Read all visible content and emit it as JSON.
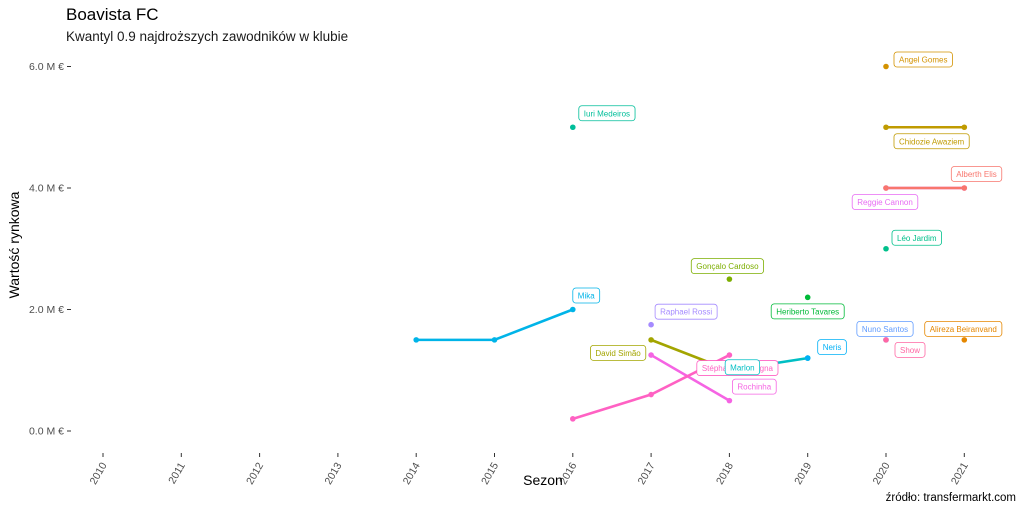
{
  "chart_data": {
    "type": "line",
    "title": "Boavista FC",
    "subtitle": "Kwantyl 0.9 najdroższych zawodników w klubie",
    "caption": "źródło: transfermarkt.com",
    "xlabel": "Sezon",
    "ylabel": "Wartość rynkowa",
    "x_ticks": [
      2010,
      2011,
      2012,
      2013,
      2014,
      2015,
      2016,
      2017,
      2018,
      2019,
      2020,
      2021
    ],
    "xlim": [
      2010,
      2021
    ],
    "y_ticks": [
      0,
      2,
      4,
      6
    ],
    "y_tick_labels": [
      "0.0 M €",
      "2.0 M €",
      "4.0 M €",
      "6.0 M €"
    ],
    "ylim": [
      0,
      6
    ],
    "grid": false,
    "series": [
      {
        "name": "Mika",
        "color": "#00B4E8",
        "points": [
          [
            2014,
            1.5
          ],
          [
            2015,
            1.5
          ],
          [
            2016,
            2.0
          ]
        ],
        "label_at": 2
      },
      {
        "name": "Iuri Medeiros",
        "color": "#00BE9A",
        "points": [
          [
            2016,
            5.0
          ]
        ],
        "label_at": 0
      },
      {
        "name": "Gonçalo Cardoso",
        "color": "#7CAE00",
        "points": [
          [
            2018,
            2.5
          ]
        ],
        "label_at": 0
      },
      {
        "name": "Raphael Rossi",
        "color": "#A58AFF",
        "points": [
          [
            2017,
            1.75
          ]
        ],
        "label_at": 0
      },
      {
        "name": "David Simão",
        "color": "#A3A500",
        "points": [
          [
            2017,
            1.5
          ],
          [
            2018,
            1.0
          ]
        ],
        "label_at": 0
      },
      {
        "name": "Rochinha",
        "color": "#F564E3",
        "points": [
          [
            2017,
            1.25
          ],
          [
            2018,
            0.5
          ]
        ],
        "label_at": 1
      },
      {
        "name": "Stéphane Sparagna",
        "color": "#FF61C3",
        "points": [
          [
            2016,
            0.2
          ],
          [
            2017,
            0.6
          ],
          [
            2018,
            1.25
          ]
        ],
        "label_at": 2
      },
      {
        "name": "Marlon",
        "color": "#00BFC4",
        "points": [
          [
            2018,
            1.0
          ],
          [
            2019,
            1.2
          ]
        ],
        "label_at": 0
      },
      {
        "name": "Neris",
        "color": "#00B0F6",
        "points": [
          [
            2019,
            1.2
          ]
        ],
        "label_at": 0
      },
      {
        "name": "Heriberto Tavares",
        "color": "#00BA38",
        "points": [
          [
            2019,
            2.2
          ]
        ],
        "label_at": 0
      },
      {
        "name": "Angel Gomes",
        "color": "#D39200",
        "points": [
          [
            2020,
            6.0
          ]
        ],
        "label_at": 0
      },
      {
        "name": "Chidozie Awaziem",
        "color": "#C09B00",
        "points": [
          [
            2020,
            5.0
          ],
          [
            2021,
            5.0
          ]
        ],
        "label_at": 0
      },
      {
        "name": "Reggie Cannon",
        "color": "#E76BF3",
        "points": [
          [
            2020,
            4.0
          ],
          [
            2021,
            4.0
          ]
        ],
        "label_at": 0
      },
      {
        "name": "Alberth Elis",
        "color": "#F8766D",
        "points": [
          [
            2020,
            4.0
          ],
          [
            2021,
            4.0
          ]
        ],
        "label_at": 1
      },
      {
        "name": "Léo Jardim",
        "color": "#00C08B",
        "points": [
          [
            2020,
            3.0
          ]
        ],
        "label_at": 0
      },
      {
        "name": "Nuno Santos",
        "color": "#619CFF",
        "points": [
          [
            2020,
            1.5
          ]
        ],
        "label_at": 0
      },
      {
        "name": "Show",
        "color": "#FF67A4",
        "points": [
          [
            2020,
            1.5
          ]
        ],
        "label_at": 0
      },
      {
        "name": "Alireza Beiranvand",
        "color": "#E58700",
        "points": [
          [
            2021,
            1.5
          ]
        ],
        "label_at": 0
      }
    ]
  }
}
